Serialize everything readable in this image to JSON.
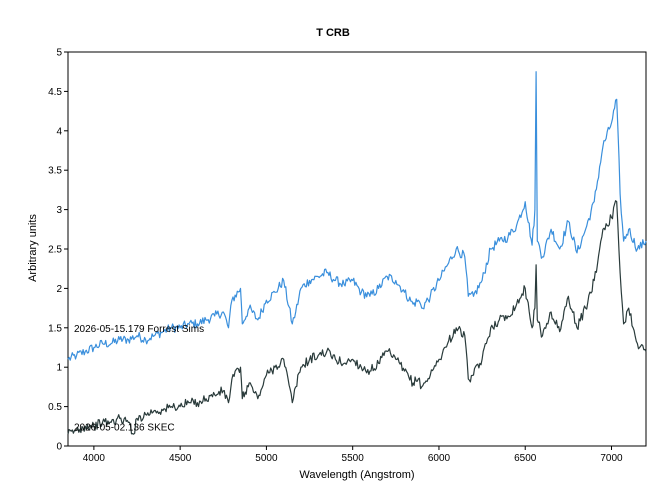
{
  "chart_data": {
    "type": "line",
    "title": "T CRB",
    "xlabel": "Wavelength (Angstrom)",
    "ylabel": "Arbitrary units",
    "xlim": [
      3850,
      7200
    ],
    "ylim": [
      0,
      5
    ],
    "xticks": [
      4000,
      4500,
      5000,
      5500,
      6000,
      6500,
      7000
    ],
    "yticks": [
      0,
      0.5,
      1,
      1.5,
      2,
      2.5,
      3,
      3.5,
      4,
      4.5,
      5
    ],
    "xtick_labels": [
      "4000",
      "4500",
      "5000",
      "5500",
      "6000",
      "6500",
      "7000"
    ],
    "ytick_labels": [
      "0",
      "0.5",
      "1",
      "1.5",
      "2",
      "2.5",
      "3",
      "3.5",
      "4",
      "4.5",
      "5"
    ],
    "grid": false,
    "series": [
      {
        "name": "2026-05-15.179  Forrest Sims",
        "color": "#3a8fdc",
        "x": [
          3850,
          3900,
          3950,
          4000,
          4050,
          4100,
          4150,
          4200,
          4250,
          4300,
          4350,
          4400,
          4450,
          4500,
          4550,
          4600,
          4650,
          4700,
          4750,
          4780,
          4800,
          4850,
          4860,
          4900,
          4950,
          5000,
          5050,
          5100,
          5150,
          5170,
          5200,
          5250,
          5300,
          5350,
          5400,
          5450,
          5500,
          5550,
          5600,
          5650,
          5700,
          5750,
          5800,
          5850,
          5880,
          5900,
          5950,
          6000,
          6050,
          6100,
          6150,
          6170,
          6200,
          6250,
          6300,
          6350,
          6400,
          6450,
          6500,
          6540,
          6556,
          6563,
          6570,
          6600,
          6650,
          6700,
          6750,
          6800,
          6850,
          6900,
          6950,
          7000,
          7030,
          7050,
          7070,
          7100,
          7150,
          7200
        ],
        "values": [
          1.1,
          1.15,
          1.2,
          1.25,
          1.3,
          1.3,
          1.35,
          1.35,
          1.4,
          1.35,
          1.4,
          1.45,
          1.5,
          1.5,
          1.55,
          1.55,
          1.6,
          1.65,
          1.7,
          1.5,
          1.85,
          2.0,
          1.55,
          1.75,
          1.6,
          1.85,
          1.95,
          2.1,
          1.55,
          1.7,
          2.0,
          2.1,
          2.15,
          2.2,
          2.1,
          2.05,
          2.1,
          1.95,
          1.9,
          2.0,
          2.15,
          2.1,
          1.95,
          1.8,
          1.85,
          1.75,
          1.9,
          2.1,
          2.3,
          2.5,
          2.4,
          1.9,
          1.9,
          2.1,
          2.5,
          2.6,
          2.65,
          2.8,
          3.1,
          2.55,
          3.0,
          4.75,
          2.6,
          2.4,
          2.75,
          2.5,
          2.85,
          2.45,
          2.75,
          3.1,
          3.8,
          4.1,
          4.4,
          3.2,
          2.6,
          2.75,
          2.5,
          2.6
        ]
      },
      {
        "name": "2026-05-02.136  SKEC",
        "color": "#2a3b3b",
        "x": [
          3850,
          3900,
          3950,
          4000,
          4050,
          4100,
          4150,
          4200,
          4230,
          4250,
          4300,
          4350,
          4400,
          4450,
          4500,
          4550,
          4600,
          4650,
          4700,
          4750,
          4780,
          4800,
          4850,
          4860,
          4900,
          4950,
          5000,
          5050,
          5100,
          5150,
          5170,
          5200,
          5250,
          5300,
          5350,
          5400,
          5450,
          5500,
          5550,
          5600,
          5650,
          5700,
          5750,
          5800,
          5850,
          5880,
          5900,
          5950,
          6000,
          6050,
          6100,
          6150,
          6170,
          6200,
          6250,
          6300,
          6350,
          6400,
          6450,
          6500,
          6540,
          6556,
          6563,
          6570,
          6600,
          6650,
          6700,
          6750,
          6800,
          6850,
          6900,
          6950,
          7000,
          7030,
          7050,
          7070,
          7100,
          7150,
          7200
        ],
        "values": [
          0.15,
          0.2,
          0.25,
          0.25,
          0.3,
          0.3,
          0.35,
          0.3,
          0.15,
          0.35,
          0.4,
          0.45,
          0.45,
          0.5,
          0.5,
          0.55,
          0.55,
          0.6,
          0.65,
          0.7,
          0.55,
          0.85,
          1.0,
          0.6,
          0.8,
          0.6,
          0.9,
          1.0,
          1.1,
          0.55,
          0.75,
          1.0,
          1.1,
          1.15,
          1.2,
          1.1,
          1.05,
          1.1,
          1.0,
          0.95,
          1.05,
          1.2,
          1.1,
          0.95,
          0.8,
          0.85,
          0.75,
          0.9,
          1.1,
          1.3,
          1.5,
          1.4,
          0.85,
          0.9,
          1.1,
          1.5,
          1.6,
          1.65,
          1.8,
          2.0,
          1.5,
          1.75,
          2.3,
          1.6,
          1.4,
          1.7,
          1.45,
          1.9,
          1.5,
          1.75,
          2.1,
          2.75,
          2.9,
          3.1,
          2.2,
          1.55,
          1.75,
          1.3,
          1.2
        ]
      }
    ]
  }
}
